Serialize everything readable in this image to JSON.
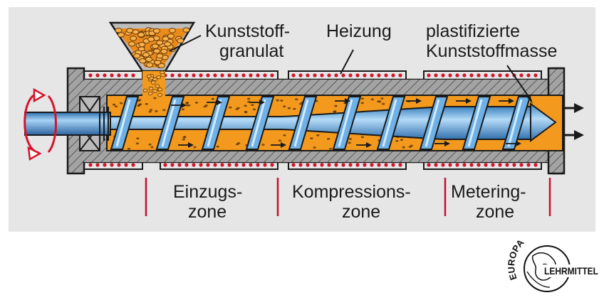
{
  "labels": {
    "granulat_line1": "Kunststoff-",
    "granulat_line2": "granulat",
    "heizung": "Heizung",
    "masse_line1": "plastifizierte",
    "masse_line2": "Kunststoffmasse",
    "zone1_line1": "Einzugs-",
    "zone1_line2": "zone",
    "zone2_line1": "Kompressions-",
    "zone2_line2": "zone",
    "zone3_line1": "Metering-",
    "zone3_line2": "zone"
  },
  "logo": {
    "arc_text": "EUROPA",
    "brand_text": "LEHRMITTEL"
  },
  "colors": {
    "panel": "#e6e6e6",
    "housing": "#9a9a9a",
    "melt": "#f39a1e",
    "screw": "#4f95d6",
    "screw_light": "#a8d4f5",
    "heater_dot": "#d4142b",
    "zone_line": "#c8102e"
  }
}
